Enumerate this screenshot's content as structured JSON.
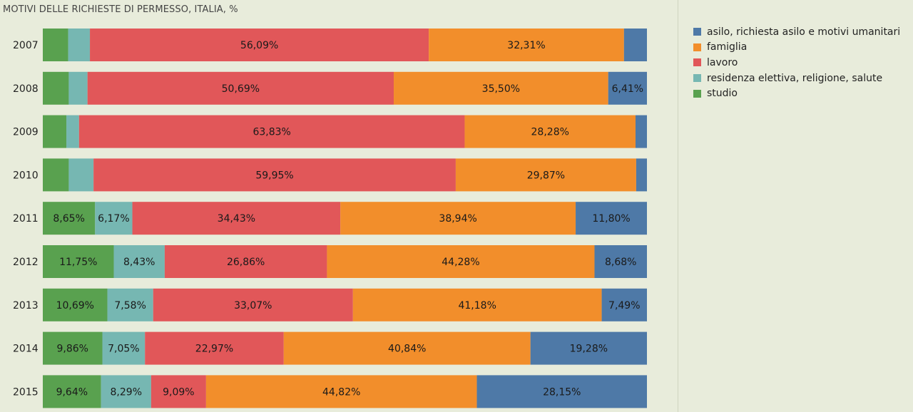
{
  "chart_data": {
    "type": "bar",
    "orientation": "horizontal",
    "stacked": true,
    "percent": true,
    "title": "MOTIVI DELLE RICHIESTE DI PERMESSO, ITALIA, %",
    "categories": [
      "2007",
      "2008",
      "2009",
      "2010",
      "2011",
      "2012",
      "2013",
      "2014",
      "2015"
    ],
    "legend_position": "right",
    "series": [
      {
        "name": "studio",
        "color": "#59a14f",
        "values": [
          4.2,
          4.3,
          3.9,
          4.3,
          8.65,
          11.75,
          10.69,
          9.86,
          9.64
        ],
        "labels": [
          "",
          "",
          "",
          "",
          "8,65%",
          "11,75%",
          "10,69%",
          "9,86%",
          "9,64%"
        ]
      },
      {
        "name": "residenza elettiva, religione, salute",
        "color": "#76b7b2",
        "values": [
          3.6,
          3.1,
          2.1,
          4.1,
          6.17,
          8.43,
          7.58,
          7.05,
          8.29
        ],
        "labels": [
          "",
          "",
          "",
          "",
          "6,17%",
          "8,43%",
          "7,58%",
          "7,05%",
          "8,29%"
        ]
      },
      {
        "name": "lavoro",
        "color": "#e15759",
        "values": [
          56.09,
          50.69,
          63.83,
          59.95,
          34.43,
          26.86,
          33.07,
          22.97,
          9.09
        ],
        "labels": [
          "56,09%",
          "50,69%",
          "63,83%",
          "59,95%",
          "34,43%",
          "26,86%",
          "33,07%",
          "22,97%",
          "9,09%"
        ]
      },
      {
        "name": "famiglia",
        "color": "#f28e2b",
        "values": [
          32.31,
          35.5,
          28.28,
          29.87,
          38.94,
          44.28,
          41.18,
          40.84,
          44.82
        ],
        "labels": [
          "32,31%",
          "35,50%",
          "28,28%",
          "29,87%",
          "38,94%",
          "44,28%",
          "41,18%",
          "40,84%",
          "44,82%"
        ]
      },
      {
        "name": "asilo, richiesta asilo e motivi umanitari",
        "color": "#4e79a7",
        "values": [
          3.8,
          6.41,
          1.89,
          1.78,
          11.8,
          8.68,
          7.49,
          19.28,
          28.15
        ],
        "labels": [
          "",
          "6,41%",
          "",
          "",
          "11,80%",
          "8,68%",
          "7,49%",
          "19,28%",
          "28,15%"
        ]
      }
    ],
    "legend_order": [
      "asilo, richiesta asilo e motivi umanitari",
      "famiglia",
      "lavoro",
      "residenza elettiva, religione, salute",
      "studio"
    ]
  }
}
